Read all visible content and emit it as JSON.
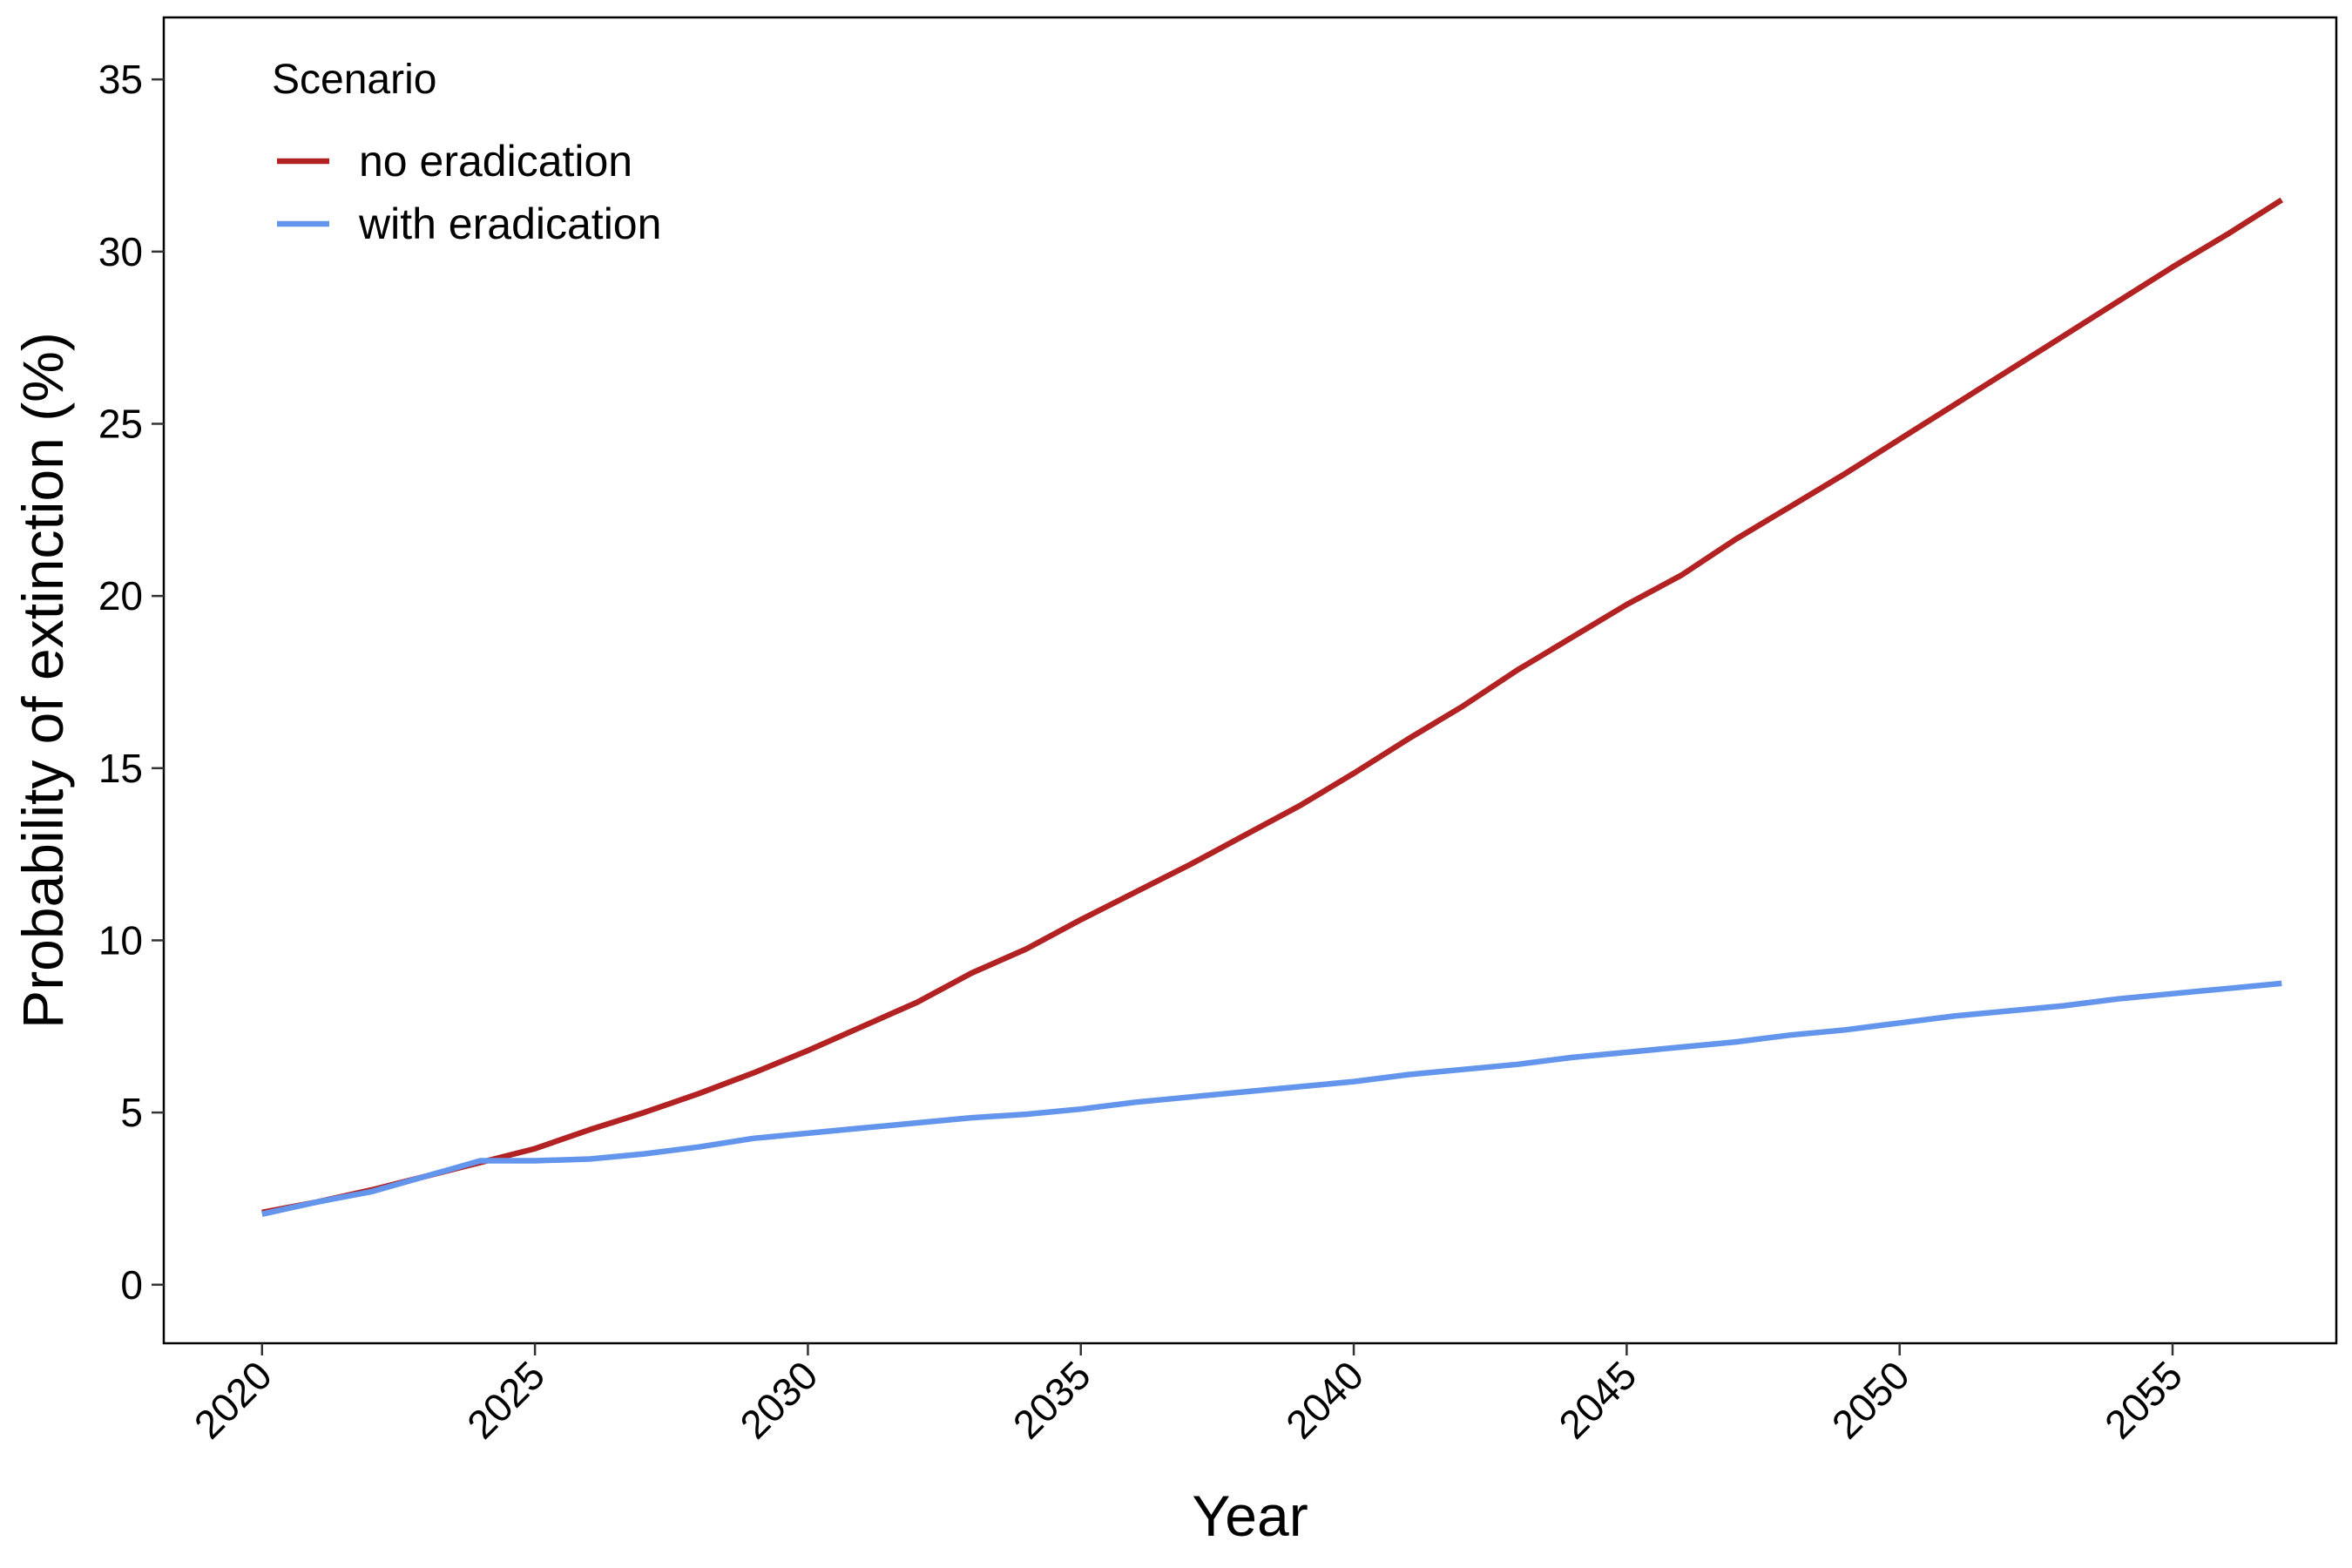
{
  "chart_data": {
    "type": "line",
    "xlabel": "Year",
    "ylabel": "Probability of extinction (%)",
    "xlim": [
      2018.2,
      2058.0
    ],
    "ylim": [
      -1.7,
      36.8
    ],
    "x_ticks": [
      2020,
      2025,
      2030,
      2035,
      2040,
      2045,
      2050,
      2055
    ],
    "y_ticks": [
      0,
      5,
      10,
      15,
      20,
      25,
      30,
      35
    ],
    "grid": false,
    "legend": {
      "title": "Scenario",
      "placement": "top-left"
    },
    "x": [
      2020,
      2021,
      2022,
      2023,
      2024,
      2025,
      2026,
      2027,
      2028,
      2029,
      2030,
      2031,
      2032,
      2033,
      2034,
      2035,
      2036,
      2037,
      2038,
      2039,
      2040,
      2041,
      2042,
      2043,
      2044,
      2045,
      2046,
      2047,
      2048,
      2049,
      2050,
      2051,
      2052,
      2053,
      2054,
      2055,
      2056,
      2057
    ],
    "series": [
      {
        "name": "no eradication",
        "color": "#B22222",
        "values": [
          2.1,
          2.4,
          2.75,
          3.15,
          3.55,
          3.95,
          4.5,
          5.0,
          5.55,
          6.15,
          6.8,
          7.5,
          8.2,
          9.05,
          9.75,
          10.6,
          11.4,
          12.2,
          13.05,
          13.9,
          14.85,
          15.85,
          16.8,
          17.85,
          18.8,
          19.75,
          20.6,
          21.65,
          22.6,
          23.55,
          24.55,
          25.55,
          26.55,
          27.55,
          28.55,
          29.55,
          30.5,
          31.5
        ]
      },
      {
        "name": "with eradication",
        "color": "#6495ED",
        "values": [
          2.05,
          2.4,
          2.7,
          3.15,
          3.6,
          3.6,
          3.65,
          3.8,
          4.0,
          4.25,
          4.4,
          4.55,
          4.7,
          4.85,
          4.95,
          5.1,
          5.3,
          5.45,
          5.6,
          5.75,
          5.9,
          6.1,
          6.25,
          6.4,
          6.6,
          6.75,
          6.9,
          7.05,
          7.25,
          7.4,
          7.6,
          7.8,
          7.95,
          8.1,
          8.3,
          8.45,
          8.6,
          8.75
        ]
      }
    ]
  }
}
